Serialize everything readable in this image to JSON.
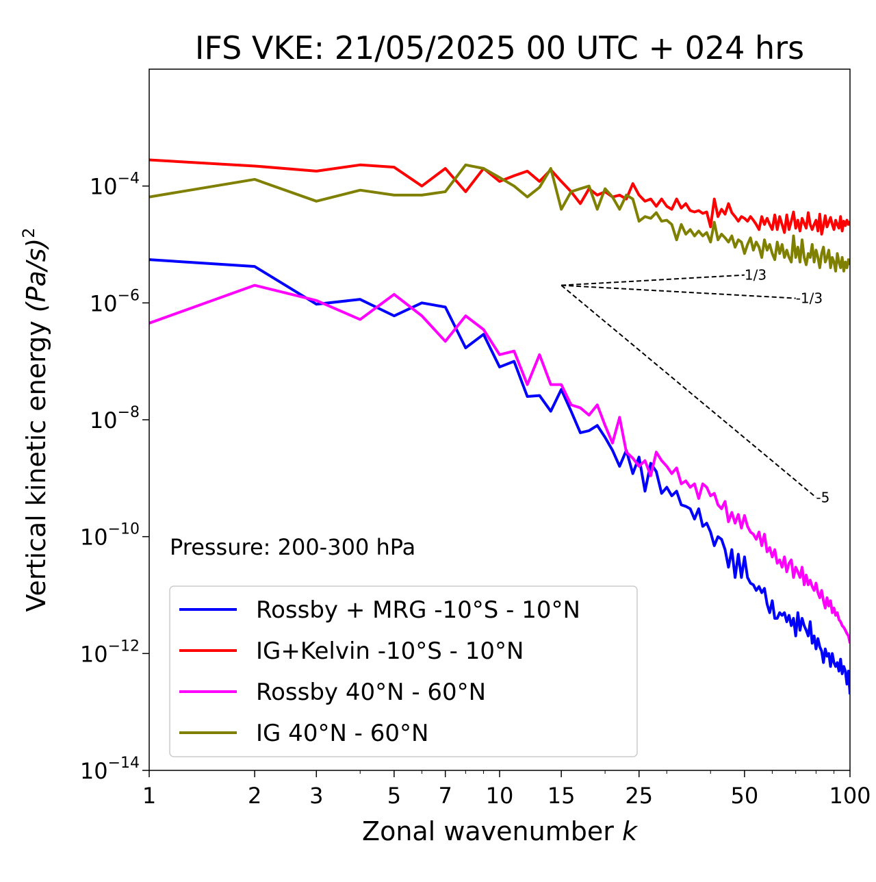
{
  "chart_data": {
    "type": "line",
    "title": "IFS VKE: 21/05/2025 00 UTC + 024 hrs",
    "xlabel": "Zonal wavenumber",
    "xlabel_var": "k",
    "ylabel": "Vertical kinetic energy",
    "ylabel_unit": "(Pa/s)",
    "ylabel_unit_sup": "2",
    "xscale": "log",
    "yscale": "log",
    "xlim": [
      1,
      100
    ],
    "ylim": [
      1e-14,
      0.01
    ],
    "x_ticks": [
      1,
      2,
      3,
      5,
      7,
      10,
      15,
      25,
      50,
      100
    ],
    "x_tick_labels": [
      "1",
      "2",
      "3",
      "5",
      "7",
      "10",
      "15",
      "25",
      "50",
      "100"
    ],
    "y_ticks": [
      {
        "value": 0.0001,
        "base": "10",
        "exp": "−4"
      },
      {
        "value": 1e-06,
        "base": "10",
        "exp": "−6"
      },
      {
        "value": 1e-08,
        "base": "10",
        "exp": "−8"
      },
      {
        "value": 1e-10,
        "base": "10",
        "exp": "−10"
      },
      {
        "value": 1e-12,
        "base": "10",
        "exp": "−12"
      },
      {
        "value": 1e-14,
        "base": "10",
        "exp": "−14"
      }
    ],
    "annotation": "Pressure: 200-300 hPa",
    "legend_position": "lower-left",
    "series": [
      {
        "name": "Rossby + MRG -10°S - 10°N",
        "color": "#0000ff",
        "x": [
          1,
          2,
          3,
          4,
          5,
          6,
          7,
          8,
          9,
          10,
          11,
          12,
          13,
          14,
          15,
          16,
          17,
          18,
          19,
          20,
          21,
          22,
          23,
          24,
          25,
          26,
          27,
          28,
          29,
          30,
          31,
          32,
          33,
          34,
          35,
          36,
          37,
          38,
          39,
          40,
          41,
          42,
          43,
          44,
          45,
          46,
          47,
          48,
          49,
          50,
          51,
          52,
          53,
          54,
          55,
          56,
          57,
          58,
          59,
          60,
          61,
          62,
          63,
          64,
          65,
          66,
          67,
          68,
          69,
          70,
          71,
          72,
          73,
          74,
          75,
          76,
          77,
          78,
          79,
          80,
          81,
          82,
          83,
          84,
          85,
          86,
          87,
          88,
          89,
          90,
          91,
          92,
          93,
          94,
          95,
          96,
          97,
          98,
          99,
          100
        ],
        "y": [
          5.5e-06,
          4.2e-06,
          9.5e-07,
          1.15e-06,
          6e-07,
          1e-06,
          8.5e-07,
          1.7e-07,
          2.9e-07,
          8e-08,
          1e-07,
          2.5e-08,
          2.6e-08,
          1.4e-08,
          3.3e-08,
          1.4e-08,
          6e-09,
          6.5e-09,
          8e-09,
          5e-09,
          3e-09,
          1.6e-09,
          3e-09,
          1.2e-09,
          2.3e-09,
          6e-10,
          1.8e-09,
          1.3e-09,
          5.5e-10,
          7e-10,
          5e-10,
          6e-10,
          3.5e-10,
          3.3e-10,
          3e-10,
          2e-10,
          3e-10,
          1.5e-10,
          1.7e-10,
          1.2e-10,
          7e-11,
          1e-10,
          9e-11,
          6e-11,
          3e-11,
          6e-11,
          2e-11,
          5e-11,
          2e-11,
          4.5e-11,
          2e-11,
          1.6e-11,
          1.5e-11,
          1.2e-11,
          1.4e-11,
          1.1e-11,
          1.3e-11,
          7e-12,
          5e-12,
          8e-12,
          4e-12,
          4e-12,
          5e-12,
          4.5e-12,
          5e-12,
          3.5e-12,
          4.5e-12,
          3e-12,
          4e-12,
          2e-12,
          5e-12,
          2.5e-12,
          4e-12,
          3e-12,
          2.5e-12,
          2e-12,
          3.5e-12,
          1.5e-12,
          2e-12,
          1.2e-12,
          1.8e-12,
          1.3e-12,
          1.1e-12,
          7e-13,
          1.2e-12,
          9e-13,
          1e-12,
          6e-13,
          1e-12,
          7e-13,
          6e-13,
          7e-13,
          5e-13,
          8e-13,
          4.5e-13,
          6e-13,
          5e-13,
          3e-13,
          5e-13,
          2e-13
        ]
      },
      {
        "name": "IG+Kelvin -10°S - 10°N",
        "color": "#ff0000",
        "x": [
          1,
          2,
          3,
          4,
          5,
          6,
          7,
          8,
          9,
          10,
          11,
          12,
          13,
          14,
          15,
          16,
          17,
          18,
          19,
          20,
          21,
          22,
          23,
          24,
          25,
          26,
          27,
          28,
          29,
          30,
          31,
          32,
          33,
          34,
          35,
          36,
          37,
          38,
          39,
          40,
          41,
          42,
          43,
          44,
          45,
          46,
          47,
          48,
          49,
          50,
          51,
          52,
          53,
          54,
          55,
          56,
          57,
          58,
          59,
          60,
          61,
          62,
          63,
          64,
          65,
          66,
          67,
          68,
          69,
          70,
          71,
          72,
          73,
          74,
          75,
          76,
          77,
          78,
          79,
          80,
          81,
          82,
          83,
          84,
          85,
          86,
          87,
          88,
          89,
          90,
          91,
          92,
          93,
          94,
          95,
          96,
          97,
          98,
          99,
          100
        ],
        "y": [
          0.00028,
          0.00022,
          0.00018,
          0.00023,
          0.00021,
          0.0001,
          0.0002,
          8e-05,
          0.0002,
          0.00012,
          0.00015,
          0.00018,
          0.00012,
          0.00019,
          0.00012,
          8e-05,
          5e-05,
          9e-05,
          7e-05,
          8e-05,
          6.5e-05,
          7e-05,
          6e-05,
          0.00011,
          7e-05,
          5.5e-05,
          6e-05,
          4.5e-05,
          6e-05,
          4.5e-05,
          4e-05,
          6e-05,
          4.2e-05,
          5e-05,
          3.8e-05,
          3.6e-05,
          3.8e-05,
          3.4e-05,
          3.6e-05,
          2e-05,
          6e-05,
          3e-05,
          4e-05,
          3.3e-05,
          5e-05,
          3.5e-05,
          3e-05,
          2.5e-05,
          3e-05,
          2.8e-05,
          2.5e-05,
          3e-05,
          2.6e-05,
          2.2e-05,
          1.8e-05,
          3e-05,
          2.2e-05,
          2.8e-05,
          2.2e-05,
          1.8e-05,
          3.2e-05,
          1.8e-05,
          3e-05,
          2.2e-05,
          1.6e-05,
          3.2e-05,
          1.8e-05,
          2.5e-05,
          3.6e-05,
          1.9e-05,
          2.6e-05,
          1.7e-05,
          2.8e-05,
          2.3e-05,
          1.9e-05,
          3.5e-05,
          2.2e-05,
          1.8e-05,
          2.2e-05,
          2.6e-05,
          1.7e-05,
          3.3e-05,
          1.5e-05,
          2.1e-05,
          3.1e-05,
          2e-05,
          2.4e-05,
          2.9e-05,
          2.2e-05,
          1.8e-05,
          2.6e-05,
          2.2e-05,
          1.9e-05,
          3e-05,
          1.7e-05,
          2.5e-05,
          2.1e-05,
          2.6e-05,
          2.2e-05,
          2.5e-05
        ]
      },
      {
        "name": "Rossby 40°N - 60°N",
        "color": "#ff00ff",
        "x": [
          1,
          2,
          3,
          4,
          5,
          6,
          7,
          8,
          9,
          10,
          11,
          12,
          13,
          14,
          15,
          16,
          17,
          18,
          19,
          20,
          21,
          22,
          23,
          24,
          25,
          26,
          27,
          28,
          29,
          30,
          31,
          32,
          33,
          34,
          35,
          36,
          37,
          38,
          39,
          40,
          41,
          42,
          43,
          44,
          45,
          46,
          47,
          48,
          49,
          50,
          51,
          52,
          53,
          54,
          55,
          56,
          57,
          58,
          59,
          60,
          61,
          62,
          63,
          64,
          65,
          66,
          67,
          68,
          69,
          70,
          71,
          72,
          73,
          74,
          75,
          76,
          77,
          78,
          79,
          80,
          81,
          82,
          83,
          84,
          85,
          86,
          87,
          88,
          89,
          90,
          91,
          92,
          93,
          94,
          95,
          96,
          97,
          98,
          99,
          100
        ],
        "y": [
          4.5e-07,
          2e-06,
          1.1e-06,
          5.2e-07,
          1.4e-06,
          6e-07,
          2.2e-07,
          6e-07,
          3.5e-07,
          1.3e-07,
          1.5e-07,
          4e-08,
          1.3e-07,
          4e-08,
          4e-08,
          1.8e-08,
          1.6e-08,
          1.2e-08,
          1.8e-08,
          8e-09,
          4e-09,
          1.1e-08,
          2.8e-09,
          2.2e-09,
          1.6e-09,
          2e-09,
          1.1e-09,
          2.8e-09,
          2e-09,
          1.6e-09,
          1.2e-09,
          1.5e-09,
          8e-10,
          9e-10,
          7e-10,
          8e-10,
          4.5e-10,
          8e-10,
          7e-10,
          5e-10,
          5.5e-10,
          3.5e-10,
          3e-10,
          4e-10,
          1.8e-10,
          2.6e-10,
          1.7e-10,
          2.4e-10,
          1.4e-10,
          2.3e-10,
          1.5e-10,
          1.2e-10,
          1.1e-10,
          9e-11,
          1.2e-10,
          7e-11,
          1.1e-10,
          5.5e-11,
          6.5e-11,
          4.5e-11,
          6e-11,
          3.5e-11,
          4e-11,
          3e-11,
          4.5e-11,
          2.5e-11,
          3.5e-11,
          4e-11,
          2e-11,
          3e-11,
          2.5e-11,
          2e-11,
          3e-11,
          1.5e-11,
          2.2e-11,
          1.5e-11,
          1.8e-11,
          1.4e-11,
          1.2e-11,
          1.6e-11,
          1.1e-11,
          9e-12,
          1.2e-11,
          8e-12,
          6e-12,
          9e-12,
          6.5e-12,
          8e-12,
          5e-12,
          6e-12,
          4.5e-12,
          5e-12,
          3.8e-12,
          3.5e-12,
          3e-12,
          2.8e-12,
          2.5e-12,
          2.2e-12,
          2e-12,
          1.5e-12
        ]
      },
      {
        "name": "IG 40°N - 60°N",
        "color": "#808000",
        "x": [
          1,
          2,
          3,
          4,
          5,
          6,
          7,
          8,
          9,
          10,
          11,
          12,
          13,
          14,
          15,
          16,
          17,
          18,
          19,
          20,
          21,
          22,
          23,
          24,
          25,
          26,
          27,
          28,
          29,
          30,
          31,
          32,
          33,
          34,
          35,
          36,
          37,
          38,
          39,
          40,
          41,
          42,
          43,
          44,
          45,
          46,
          47,
          48,
          49,
          50,
          51,
          52,
          53,
          54,
          55,
          56,
          57,
          58,
          59,
          60,
          61,
          62,
          63,
          64,
          65,
          66,
          67,
          68,
          69,
          70,
          71,
          72,
          73,
          74,
          75,
          76,
          77,
          78,
          79,
          80,
          81,
          82,
          83,
          84,
          85,
          86,
          87,
          88,
          89,
          90,
          91,
          92,
          93,
          94,
          95,
          96,
          97,
          98,
          99,
          100
        ],
        "y": [
          6.5e-05,
          0.00013,
          5.5e-05,
          8.5e-05,
          7e-05,
          7e-05,
          8e-05,
          0.00023,
          0.0002,
          0.00014,
          0.0001,
          6.5e-05,
          9.5e-05,
          0.0002,
          4e-05,
          8e-05,
          9e-05,
          0.0001,
          4e-05,
          9e-05,
          6.5e-05,
          4e-05,
          7e-05,
          6e-05,
          2.5e-05,
          3e-05,
          2.8e-05,
          3.5e-05,
          2.5e-05,
          2.6e-05,
          2.2e-05,
          1.2e-05,
          2.2e-05,
          1.5e-05,
          1.8e-05,
          1.4e-05,
          1.7e-05,
          1.4e-05,
          1.6e-05,
          1.1e-05,
          2.4e-05,
          1.2e-05,
          1.5e-05,
          1.3e-05,
          1.1e-05,
          1.4e-05,
          9e-06,
          1.2e-05,
          1.1e-05,
          7e-06,
          1e-05,
          1.3e-05,
          8e-06,
          1.1e-05,
          9e-06,
          6e-06,
          1.2e-05,
          8e-06,
          1e-05,
          7e-06,
          5.5e-06,
          1.1e-05,
          7e-06,
          1e-05,
          6e-06,
          8e-06,
          6e-06,
          5e-06,
          1.4e-05,
          6e-06,
          9e-06,
          5e-06,
          1.2e-05,
          6e-06,
          4.5e-06,
          7e-06,
          6e-06,
          1e-05,
          5e-06,
          8e-06,
          6e-06,
          4e-06,
          7e-06,
          9e-06,
          5e-06,
          6e-06,
          8e-06,
          4e-06,
          6e-06,
          5e-06,
          3.5e-06,
          7e-06,
          5e-06,
          4e-06,
          6e-06,
          3.5e-06,
          5e-06,
          4e-06,
          5.5e-06,
          4.5e-06
        ]
      }
    ],
    "reference_lines": [
      {
        "label": "1/3",
        "x": [
          15,
          50
        ],
        "y": [
          2e-06,
          3e-06
        ]
      },
      {
        "label": "-1/3",
        "x": [
          15,
          70
        ],
        "y": [
          2e-06,
          1.2e-06
        ]
      },
      {
        "label": "-5",
        "x": [
          15,
          80
        ],
        "y": [
          2e-06,
          4.7e-10
        ]
      }
    ]
  }
}
